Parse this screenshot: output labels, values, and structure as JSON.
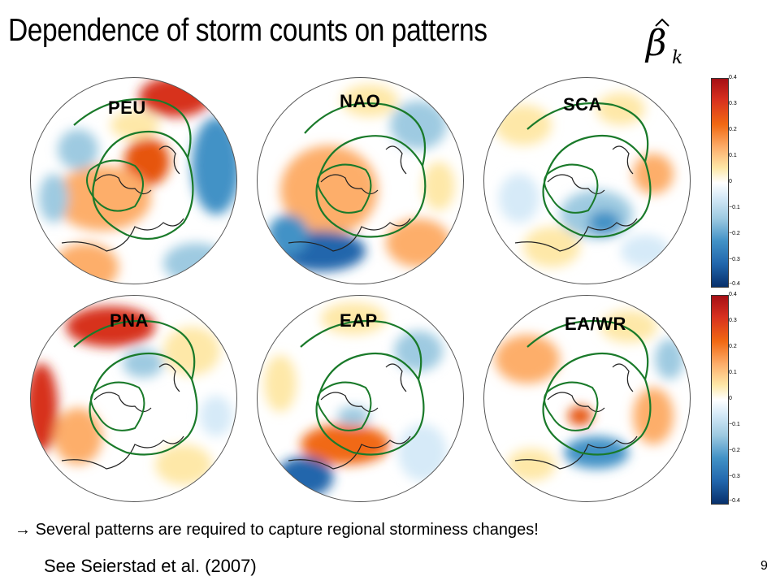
{
  "slide": {
    "title": "Dependence of storm counts on patterns",
    "formula_symbol": "β̂k",
    "bullet_arrow": "→",
    "bullet_text": "Several patterns are required to capture regional storminess changes!",
    "reference": "See Seierstad  et al. (2007)",
    "page_number": "9"
  },
  "maps": [
    {
      "label": "PEU"
    },
    {
      "label": "NAO"
    },
    {
      "label": "SCA"
    },
    {
      "label": "PNA"
    },
    {
      "label": "EAP"
    },
    {
      "label": "EA/WR"
    }
  ],
  "colorbar": {
    "ticks": [
      "0.4",
      "0.3",
      "0.2",
      "0.1",
      "0",
      "−0.1",
      "−0.2",
      "−0.3",
      "−0.4"
    ],
    "colors": [
      "#a50f15",
      "#d7301f",
      "#f16913",
      "#fdae6b",
      "#fee8a8",
      "#ffffff",
      "#d6eaf8",
      "#9ecae1",
      "#4292c6",
      "#2166ac",
      "#08306b"
    ]
  },
  "colors": {
    "contour": "#1a7a2a",
    "coastline": "#222222",
    "warm": "#e6550d",
    "cool": "#3182bd"
  }
}
